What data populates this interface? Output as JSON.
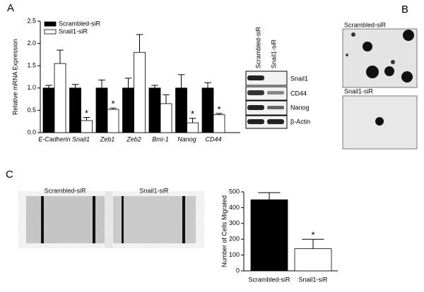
{
  "panels": {
    "a": "A",
    "b": "B",
    "c": "C"
  },
  "chart_data": [
    {
      "type": "bar",
      "ylabel": "Relative mRNA Expression",
      "categories": [
        "E-Cadherin",
        "Snail1",
        "Zeb1",
        "Zeb2",
        "Bmi-1",
        "Nanog",
        "CD44"
      ],
      "series": [
        {
          "name": "Scrambled-siR",
          "color": "#000000",
          "values": [
            1.0,
            1.0,
            1.0,
            1.0,
            1.0,
            1.0,
            1.0
          ],
          "errors": [
            0.06,
            0.08,
            0.18,
            0.22,
            0.06,
            0.3,
            0.12
          ]
        },
        {
          "name": "Snail1-siR",
          "color": "#ffffff",
          "values": [
            1.55,
            0.27,
            0.52,
            1.8,
            0.65,
            0.22,
            0.4
          ],
          "errors": [
            0.3,
            0.07,
            0.03,
            0.4,
            0.2,
            0.1,
            0.03
          ]
        }
      ],
      "markers": [
        null,
        "*",
        "*",
        null,
        null,
        "*",
        "*"
      ],
      "ylim": [
        0,
        2.5
      ],
      "yticks": [
        {
          "value": 0,
          "label": "0.0"
        },
        0.5,
        {
          "value": 1,
          "label": "1.0"
        },
        1.5,
        {
          "value": 2,
          "label": "2.0"
        },
        2.5
      ],
      "legend": "upper left"
    },
    {
      "type": "bar",
      "ylabel": "Number of Cells Migrated",
      "categories": [
        "Scrambled-siR",
        "Snail1-siR"
      ],
      "values": [
        450,
        140
      ],
      "errors": [
        45,
        60
      ],
      "colors": [
        "#000000",
        "#ffffff"
      ],
      "markers": [
        null,
        "*"
      ],
      "ylim": [
        0,
        500
      ],
      "yticks": [
        0,
        100,
        200,
        300,
        400,
        500
      ]
    }
  ],
  "blot": {
    "columns": [
      "Scrambled-siR",
      "Snail1-siR"
    ],
    "rows": [
      "Snail1",
      "CD44",
      "Nanog",
      "β-Actin"
    ]
  },
  "colony": {
    "top": "Scrambled-siR",
    "bottom": "Snail1-siR"
  },
  "migration": {
    "left": "Scrambled-siR",
    "right": "Snail1-siR"
  }
}
